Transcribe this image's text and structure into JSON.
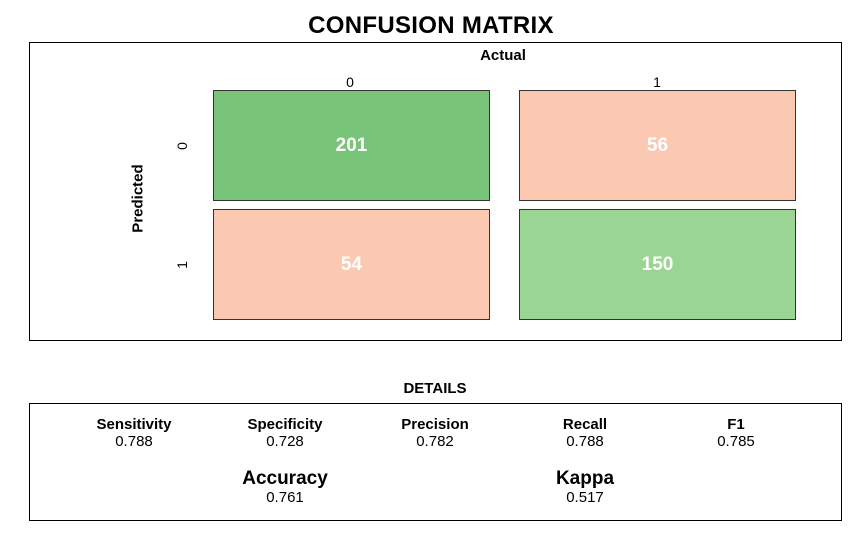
{
  "chart_data": {
    "type": "heatmap",
    "title": "CONFUSION MATRIX",
    "xlabel": "Actual",
    "ylabel": "Predicted",
    "x_categories": [
      "0",
      "1"
    ],
    "y_categories": [
      "0",
      "1"
    ],
    "cells": [
      {
        "predicted": "0",
        "actual": "0",
        "value": 201,
        "color": "#78c479"
      },
      {
        "predicted": "0",
        "actual": "1",
        "value": 56,
        "color": "#fbc9b1"
      },
      {
        "predicted": "1",
        "actual": "0",
        "value": 54,
        "color": "#fbc9b1"
      },
      {
        "predicted": "1",
        "actual": "1",
        "value": 150,
        "color": "#9bd594"
      }
    ]
  },
  "details": {
    "title": "DETAILS",
    "metrics": [
      {
        "name": "Sensitivity",
        "value": "0.788"
      },
      {
        "name": "Specificity",
        "value": "0.728"
      },
      {
        "name": "Precision",
        "value": "0.782"
      },
      {
        "name": "Recall",
        "value": "0.788"
      },
      {
        "name": "F1",
        "value": "0.785"
      }
    ],
    "summary": [
      {
        "name": "Accuracy",
        "value": "0.761"
      },
      {
        "name": "Kappa",
        "value": "0.517"
      }
    ]
  }
}
